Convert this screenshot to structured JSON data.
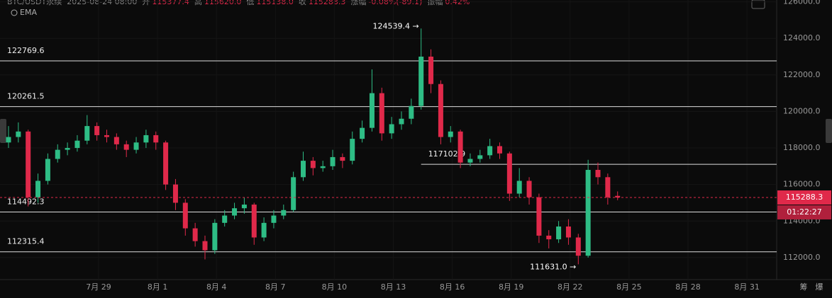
{
  "chart_data": {
    "type": "candlestick",
    "header": {
      "symbol": "BTC/USDT永续",
      "time": "2025-08-24 08:00",
      "open_label": "开",
      "open": "115377.4",
      "high_label": "高",
      "high": "115620.0",
      "low_label": "低",
      "low": "115138.0",
      "close_label": "收",
      "close": "115288.3",
      "change_label": "涨幅",
      "change": "-0.08%(-89.1)",
      "amp_label": "振幅",
      "amp": "0.42%"
    },
    "indicator": "EMA",
    "up_color": "#2ebd85",
    "down_color": "#e0294a",
    "ylim": [
      110600,
      126100
    ],
    "yticks": [
      {
        "value": 112000,
        "label": "112000.0"
      },
      {
        "value": 114000,
        "label": "114000.0"
      },
      {
        "value": 116000,
        "label": "116000.0"
      },
      {
        "value": 118000,
        "label": "118000.0"
      },
      {
        "value": 120000,
        "label": "120000.0"
      },
      {
        "value": 122000,
        "label": "122000.0"
      },
      {
        "value": 124000,
        "label": "124000.0"
      },
      {
        "value": 126000,
        "label": "126000.0"
      }
    ],
    "xtick_labels": [
      "7月 29",
      "8月 1",
      "8月 4",
      "8月 7",
      "8月 10",
      "8月 13",
      "8月 16",
      "8月 19",
      "8月 22",
      "8月 25",
      "8月 28",
      "8月 31"
    ],
    "open": [
      118300,
      118600,
      118900,
      115300,
      116200,
      117400,
      117900,
      118000,
      118400,
      119200,
      118700,
      118600,
      118200,
      117900,
      118300,
      118700,
      118300,
      116000,
      115000,
      113600,
      112900,
      112400,
      113900,
      114300,
      114700,
      114900,
      113100,
      113900,
      114300,
      114600,
      116400,
      117300,
      116900,
      117000,
      117500,
      117300,
      118500,
      119100,
      121000,
      118800,
      119300,
      119600,
      120300,
      123000,
      121500,
      118600,
      118900,
      117200,
      117400,
      117600,
      118100,
      117700,
      115500,
      116200,
      115300,
      113200,
      113000,
      113700,
      113100,
      112100,
      116800,
      116400,
      115377.4
    ],
    "high": [
      119200,
      119400,
      119000,
      116600,
      117700,
      118200,
      118300,
      118700,
      119800,
      119400,
      119000,
      118800,
      118400,
      118600,
      119000,
      118900,
      118400,
      116300,
      115200,
      113900,
      113200,
      114100,
      114600,
      115000,
      115300,
      115000,
      114200,
      114600,
      114900,
      116700,
      117800,
      117500,
      117300,
      117900,
      117700,
      118900,
      119500,
      122300,
      121300,
      119700,
      120000,
      120700,
      124539.4,
      123400,
      121700,
      119200,
      119000,
      117700,
      117900,
      118500,
      118300,
      117800,
      116900,
      116400,
      115500,
      113500,
      114000,
      114100,
      113300,
      117350,
      117200,
      116600,
      115620
    ],
    "low": [
      118000,
      118300,
      114800,
      115000,
      116000,
      117200,
      117600,
      117800,
      118200,
      118400,
      118300,
      117900,
      117500,
      117700,
      118000,
      117900,
      115700,
      114600,
      113200,
      112600,
      111900,
      112200,
      113700,
      114100,
      114400,
      112700,
      112900,
      113600,
      114100,
      114500,
      116200,
      116500,
      116700,
      116800,
      116900,
      117100,
      118300,
      118900,
      118400,
      118500,
      119000,
      119300,
      120100,
      121000,
      118200,
      118300,
      116900,
      117000,
      117200,
      117400,
      117400,
      115100,
      115300,
      114900,
      112800,
      112500,
      112800,
      112700,
      111631,
      112000,
      116000,
      114900,
      115138
    ],
    "close": [
      118600,
      118900,
      115300,
      116200,
      117400,
      117900,
      118000,
      118400,
      119200,
      118700,
      118600,
      118200,
      117900,
      118300,
      118700,
      118300,
      116000,
      115000,
      113600,
      112900,
      112400,
      113900,
      114300,
      114700,
      114900,
      113100,
      113900,
      114300,
      114600,
      116400,
      117300,
      116900,
      117000,
      117500,
      117300,
      118500,
      119100,
      121000,
      118800,
      119300,
      119600,
      120300,
      123000,
      121500,
      118600,
      118900,
      117200,
      117400,
      117600,
      118100,
      117700,
      115500,
      116200,
      115300,
      113200,
      113000,
      113700,
      113100,
      112100,
      116800,
      116400,
      115300,
      115288.3
    ],
    "levels": [
      122769.6,
      120261.5,
      117102.9,
      114492.3,
      112315.4
    ],
    "annotations": [
      {
        "value": 124539.4,
        "label": "124539.4 →"
      },
      {
        "value": 111631,
        "label": "111631.0 →"
      }
    ],
    "last": {
      "value": 115288.3,
      "countdown": "01:22:27"
    },
    "buttons": [
      "筹",
      "爆"
    ]
  }
}
